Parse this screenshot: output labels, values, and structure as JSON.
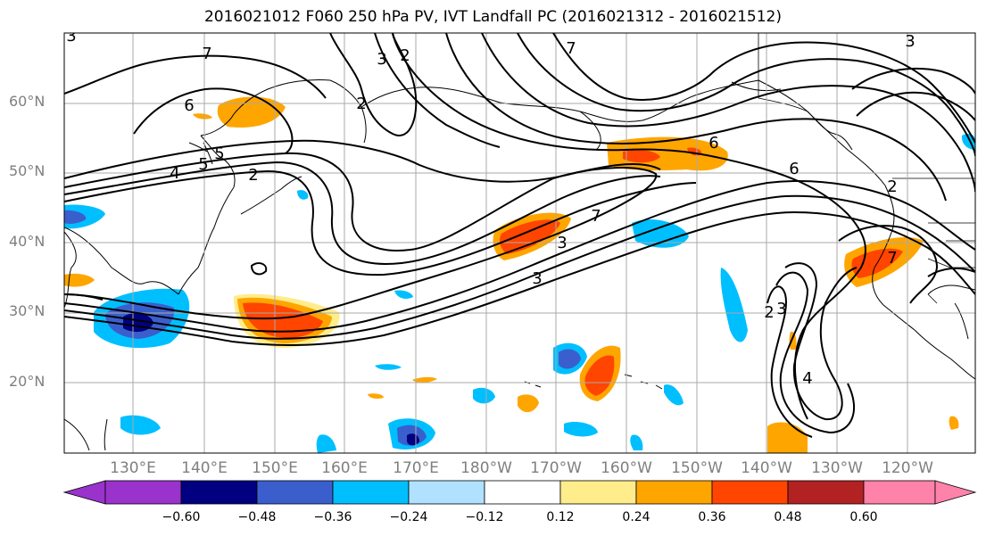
{
  "title": "2016021012 F060 250 hPa PV, IVT Landfall PC (2016021312 - 2016021512)",
  "lat_labels": [
    "60°N",
    "50°N",
    "40°N",
    "30°N",
    "20°N"
  ],
  "lon_labels": [
    "130°E",
    "140°E",
    "150°E",
    "160°E",
    "170°E",
    "180°W",
    "170°W",
    "160°W",
    "150°W",
    "140°W",
    "130°W",
    "120°W"
  ],
  "colorbar": {
    "ticks": [
      "−0.60",
      "−0.48",
      "−0.36",
      "−0.24",
      "−0.12",
      "0.12",
      "0.24",
      "0.36",
      "0.48",
      "0.60"
    ],
    "colors": [
      "#9933cc",
      "#000080",
      "#3a5fcd",
      "#00bfff",
      "#b0e2ff",
      "#ffffff",
      "#ffec8b",
      "#ffa500",
      "#ff4500",
      "#b22222",
      "#ff82ab"
    ]
  },
  "contour_labels": [
    "7",
    "6",
    "3",
    "2",
    "5",
    "4",
    "5",
    "2",
    "2",
    "3",
    "3",
    "7",
    "6",
    "7",
    "6",
    "3",
    "2",
    "3",
    "7",
    "3",
    "4",
    "2"
  ],
  "fill_colors": {
    "neg_light": "#b0e2ff",
    "neg_mid": "#00bfff",
    "neg_dark": "#3a5fcd",
    "neg_deep": "#000080",
    "pos_light": "#ffec8b",
    "pos_mid": "#ffa500",
    "pos_dark": "#ff4500"
  }
}
